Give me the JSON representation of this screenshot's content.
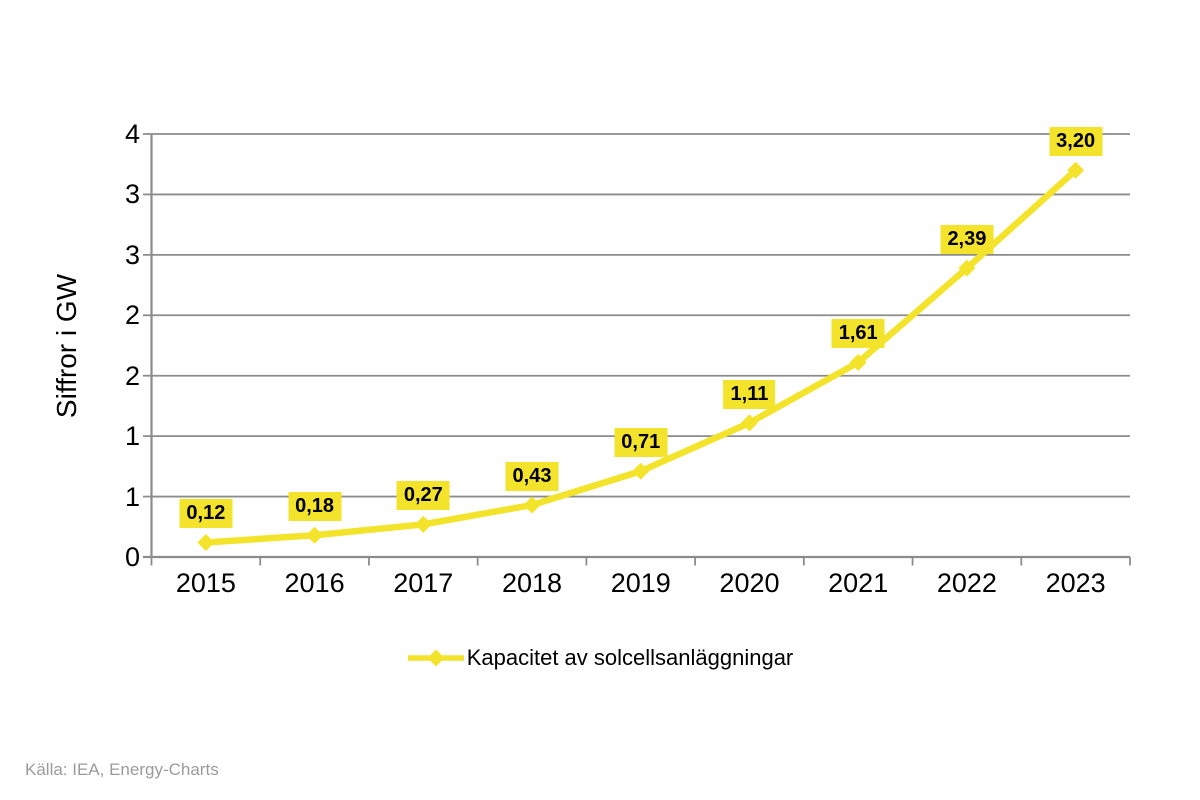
{
  "chart_data": {
    "type": "line",
    "title": "",
    "xlabel": "",
    "ylabel": "Siffror i GW",
    "categories": [
      "2015",
      "2016",
      "2017",
      "2018",
      "2019",
      "2020",
      "2021",
      "2022",
      "2023"
    ],
    "series": [
      {
        "name": "Kapacitet av solcellsanläggningar",
        "values": [
          0.12,
          0.18,
          0.27,
          0.43,
          0.71,
          1.11,
          1.61,
          2.39,
          3.2
        ],
        "point_labels": [
          "0,12",
          "0,18",
          "0,27",
          "0,43",
          "0,71",
          "1,11",
          "1,61",
          "2,39",
          "3,20"
        ],
        "color": "#F4E32B",
        "marker": "diamond"
      }
    ],
    "ylim": [
      0,
      3.5
    ],
    "y_ticks": [
      {
        "value": 0.0,
        "label": "0"
      },
      {
        "value": 0.5,
        "label": "1"
      },
      {
        "value": 1.0,
        "label": "1"
      },
      {
        "value": 1.5,
        "label": "2"
      },
      {
        "value": 2.0,
        "label": "2"
      },
      {
        "value": 2.5,
        "label": "3"
      },
      {
        "value": 3.0,
        "label": "3"
      },
      {
        "value": 3.5,
        "label": "4"
      }
    ],
    "grid": true,
    "legend_position": "bottom",
    "colors": {
      "series": "#F4E32B",
      "gridline": "#8C8C8C",
      "axis": "#8C8C8C",
      "label_text": "#000000",
      "source_text": "#9B9B9B"
    }
  },
  "footer": {
    "source": "Källa: IEA, Energy-Charts"
  }
}
